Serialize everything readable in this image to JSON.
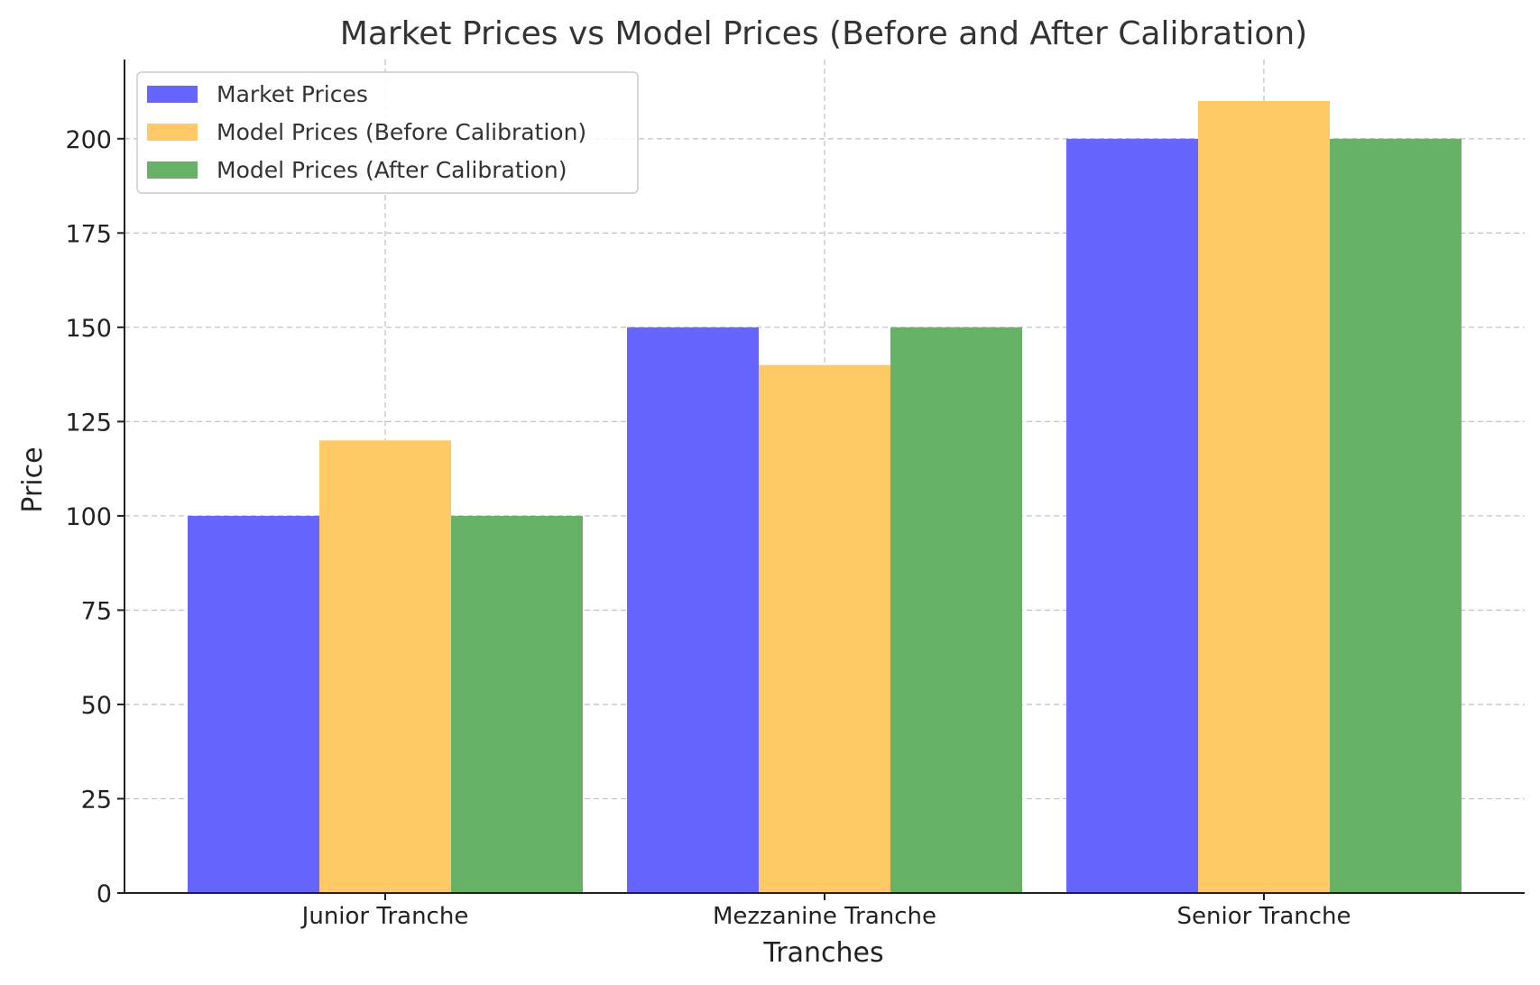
{
  "chart_data": {
    "type": "bar",
    "title": "Market Prices vs Model Prices (Before and After Calibration)",
    "xlabel": "Tranches",
    "ylabel": "Price",
    "categories": [
      "Junior Tranche",
      "Mezzanine Tranche",
      "Senior Tranche"
    ],
    "series": [
      {
        "name": "Market Prices",
        "values": [
          100,
          150,
          200
        ],
        "color": "#6666ff"
      },
      {
        "name": "Model Prices (Before Calibration)",
        "values": [
          120,
          140,
          210
        ],
        "color": "#ffc966"
      },
      {
        "name": "Model Prices (After Calibration)",
        "values": [
          100,
          150,
          200
        ],
        "color": "#67b267"
      }
    ],
    "ylim": [
      0,
      221
    ],
    "yticks": [
      0,
      25,
      50,
      75,
      100,
      125,
      150,
      175,
      200
    ],
    "grid": true,
    "legend_position": "top-left"
  }
}
